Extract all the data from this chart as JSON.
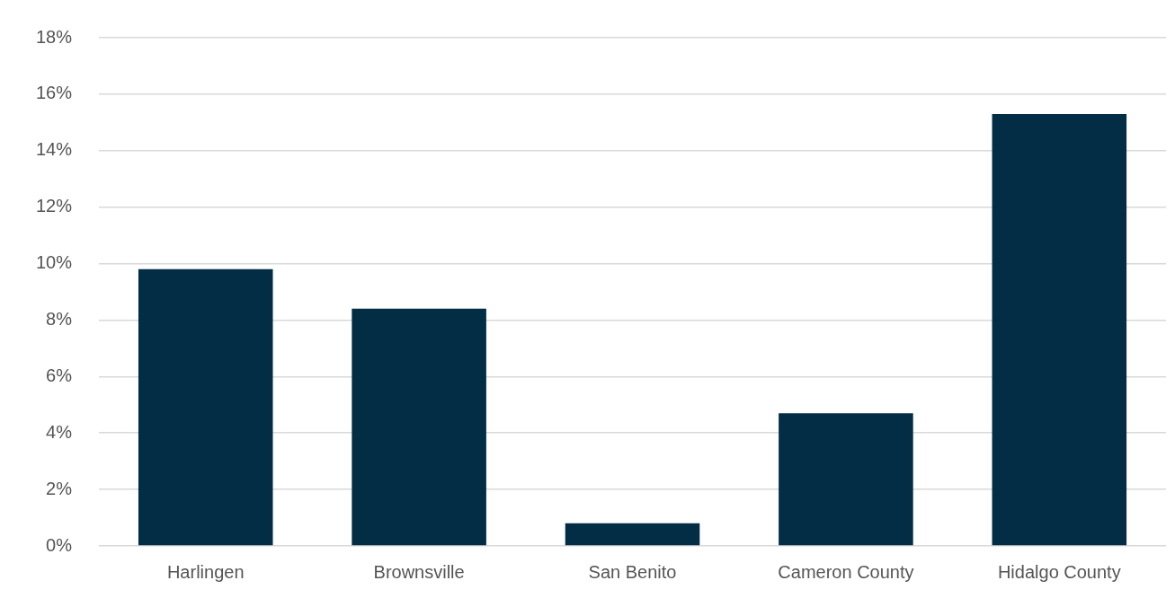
{
  "chart_data": {
    "type": "bar",
    "categories": [
      "Harlingen",
      "Brownsville",
      "San Benito",
      "Cameron County",
      "Hidalgo County"
    ],
    "values": [
      9.8,
      8.4,
      0.8,
      4.7,
      15.3
    ],
    "color": "#032d45",
    "ylim": [
      0,
      18
    ],
    "yticks": [
      {
        "value": 0,
        "label": "0%"
      },
      {
        "value": 2,
        "label": "2%"
      },
      {
        "value": 4,
        "label": "4%"
      },
      {
        "value": 6,
        "label": "6%"
      },
      {
        "value": 8,
        "label": "8%"
      },
      {
        "value": 10,
        "label": "10%"
      },
      {
        "value": 12,
        "label": "12%"
      },
      {
        "value": 14,
        "label": "14%"
      },
      {
        "value": 16,
        "label": "16%"
      },
      {
        "value": 18,
        "label": "18%"
      }
    ],
    "grid": "y",
    "legend": false
  }
}
